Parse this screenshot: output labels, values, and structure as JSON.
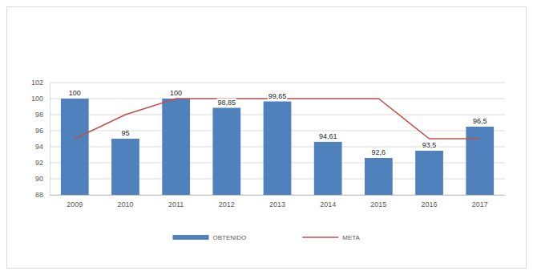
{
  "chart_data": {
    "type": "bar",
    "categories": [
      "2009",
      "2010",
      "2011",
      "2012",
      "2013",
      "2014",
      "2015",
      "2016",
      "2017"
    ],
    "series": [
      {
        "name": "OBTENIDO",
        "type": "bar",
        "color": "#4f81bd",
        "values": [
          100,
          95,
          100,
          98.85,
          99.65,
          94.61,
          92.6,
          93.5,
          96.5
        ],
        "value_labels": [
          "100",
          "95",
          "100",
          "98,85",
          "99,65",
          "94,61",
          "92,6",
          "93,5",
          "96,5"
        ]
      },
      {
        "name": "META",
        "type": "line",
        "color": "#c0504d",
        "values": [
          95,
          98,
          100,
          100,
          100,
          100,
          100,
          95,
          95
        ]
      }
    ],
    "ylim": [
      88,
      102
    ],
    "yticks": [
      88,
      90,
      92,
      94,
      96,
      98,
      100,
      102
    ],
    "grid": true,
    "data_labels": true,
    "legend": "bottom"
  }
}
